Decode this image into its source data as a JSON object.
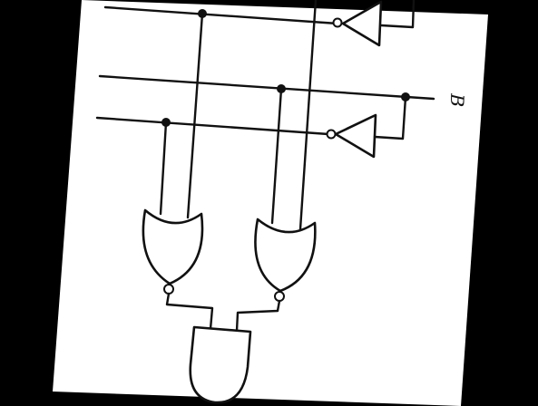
{
  "diagram": {
    "background_color": "#000000",
    "paper_color": "#ffffff",
    "ink_color": "#111111",
    "labels": {
      "input_b": "B"
    },
    "components": [
      {
        "kind": "not-gate",
        "name": "not-gate-top"
      },
      {
        "kind": "not-gate",
        "name": "not-gate-middle"
      },
      {
        "kind": "nor-gate",
        "name": "nor-gate-left"
      },
      {
        "kind": "nor-gate",
        "name": "nor-gate-right"
      },
      {
        "kind": "and-gate",
        "name": "and-gate-bottom"
      }
    ]
  }
}
